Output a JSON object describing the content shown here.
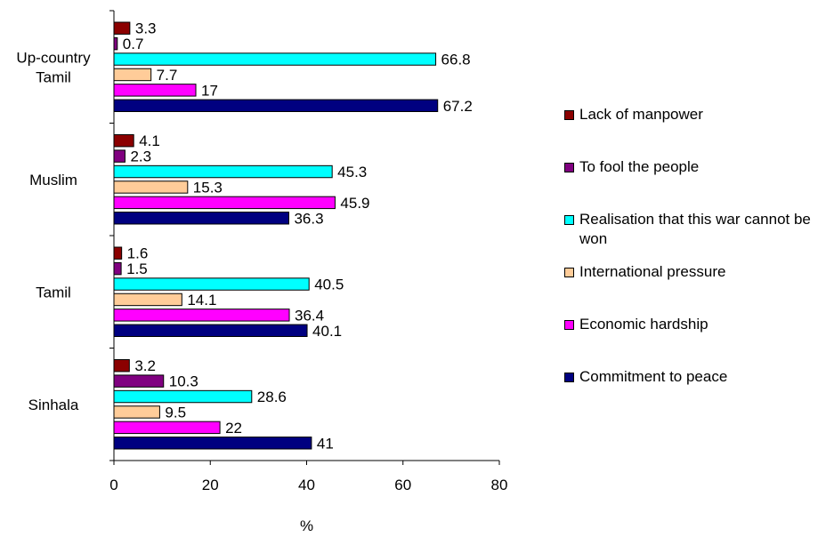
{
  "chart_data": {
    "type": "bar",
    "orientation": "horizontal",
    "categories": [
      "Up-country\nTamil",
      "Muslim",
      "Tamil",
      "Sinhala"
    ],
    "series": [
      {
        "name": "Lack of manpower",
        "color": "#8B0000",
        "values": [
          3.3,
          4.1,
          1.6,
          3.2
        ]
      },
      {
        "name": "To fool the people",
        "color": "#800080",
        "values": [
          0.7,
          2.3,
          1.5,
          10.3
        ]
      },
      {
        "name": "Realisation that this war cannot be won",
        "color": "#00FFFF",
        "values": [
          66.8,
          45.3,
          40.5,
          28.6
        ]
      },
      {
        "name": "International pressure",
        "color": "#FFCC99",
        "values": [
          7.7,
          15.3,
          14.1,
          9.5
        ]
      },
      {
        "name": "Economic hardship",
        "color": "#FF00FF",
        "values": [
          17,
          45.9,
          36.4,
          22
        ]
      },
      {
        "name": "Commitment to peace",
        "color": "#000080",
        "values": [
          67.2,
          36.3,
          40.1,
          41
        ]
      }
    ],
    "data_labels": [
      [
        "3.3",
        "0.7",
        "66.8",
        "7.7",
        "17",
        "67.2"
      ],
      [
        "4.1",
        "2.3",
        "45.3",
        "15.3",
        "45.9",
        "36.3"
      ],
      [
        "1.6",
        "1.5",
        "40.5",
        "14.1",
        "36.4",
        "40.1"
      ],
      [
        "3.2",
        "10.3",
        "28.6",
        "9.5",
        "22",
        "41"
      ]
    ],
    "xlim": [
      0,
      80
    ],
    "xticks": [
      "0",
      "20",
      "40",
      "60",
      "80"
    ],
    "xlabel": "%",
    "ylabel": "",
    "title": "",
    "legend": {
      "position": "right",
      "order": [
        0,
        1,
        2,
        3,
        4,
        5
      ]
    }
  }
}
